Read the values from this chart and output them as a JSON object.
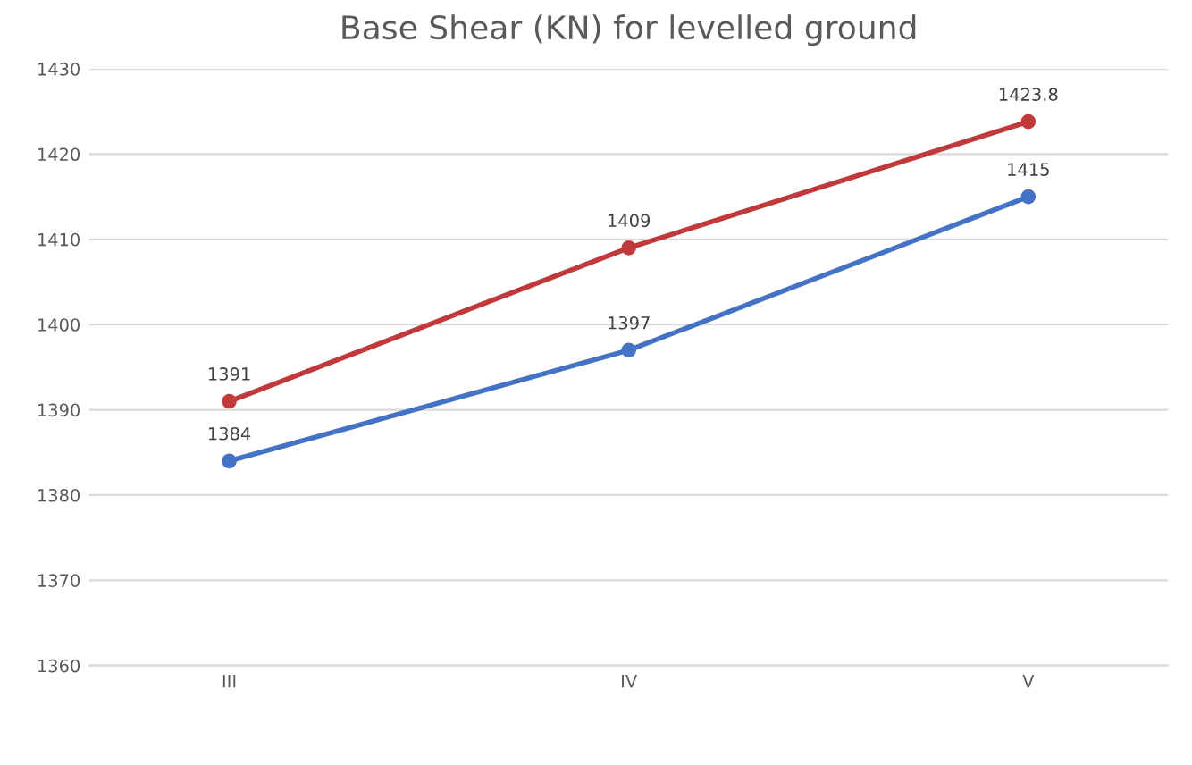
{
  "chart_data": {
    "type": "line",
    "title": "Base Shear (KN) for levelled ground",
    "categories": [
      "III",
      "IV",
      "V"
    ],
    "series": [
      {
        "color": "#4472c4",
        "values": [
          1384,
          1397,
          1415
        ]
      },
      {
        "color": "#c0393b",
        "values": [
          1391,
          1409,
          1423.8
        ]
      }
    ],
    "ylim": [
      1360,
      1430
    ],
    "yticks": [
      1360,
      1370,
      1380,
      1390,
      1400,
      1410,
      1420,
      1430
    ],
    "grid": "y",
    "marker": "circle",
    "line_style": "solid",
    "data_labels": true
  }
}
